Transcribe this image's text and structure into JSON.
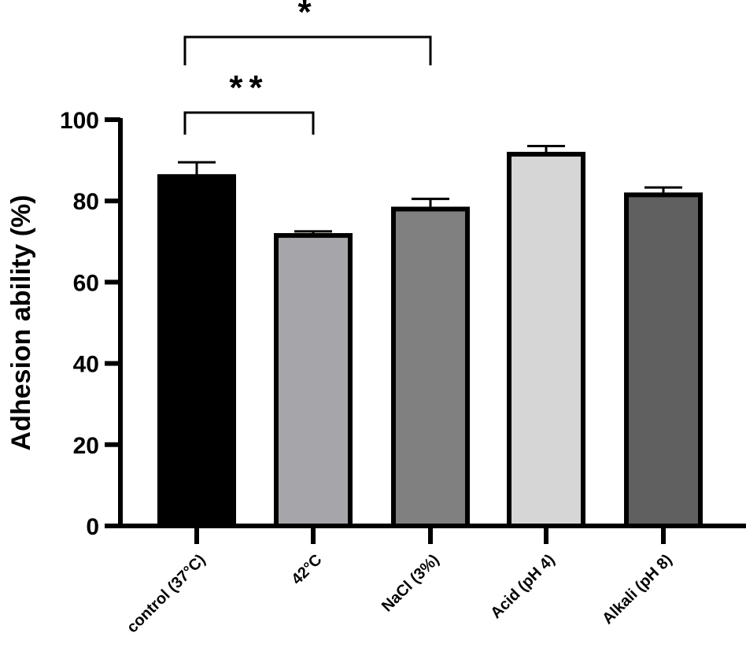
{
  "chart_data": {
    "type": "bar",
    "title": "",
    "xlabel": "",
    "ylabel": "Adhesion ability (%)",
    "ylim": [
      0,
      100
    ],
    "yticks": [
      0,
      20,
      40,
      60,
      80,
      100
    ],
    "grid": false,
    "categories": [
      "control (37°C)",
      "42°C",
      "NaCl (3%)",
      "Acid (pH 4)",
      "Alkali (pH 8)"
    ],
    "values": [
      86,
      71.5,
      78,
      91.5,
      81.5
    ],
    "errors": [
      3.5,
      1,
      2.5,
      2,
      1.8
    ],
    "colors": [
      "#000000",
      "#a6a6aa",
      "#808080",
      "#d6d6d6",
      "#606060"
    ],
    "significance": [
      {
        "from": 0,
        "to": 1,
        "label": "**"
      },
      {
        "from": 0,
        "to": 2,
        "label": "*"
      }
    ]
  }
}
